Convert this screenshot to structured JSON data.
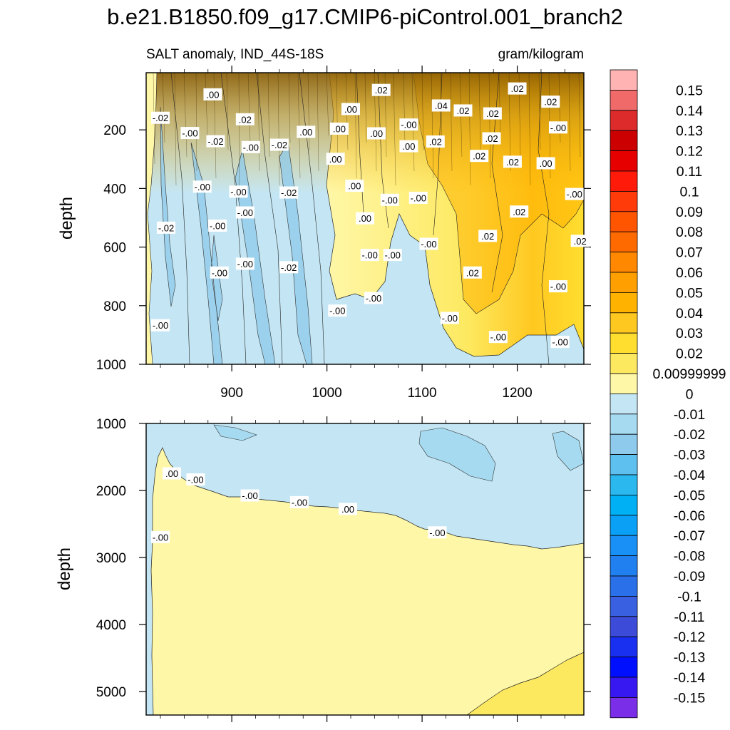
{
  "title": "b.e21.B1850.f09_g17.CMIP6-piControl.001_branch2",
  "chart_data": [
    {
      "type": "contour",
      "panel": "upper",
      "left_string": "SALT anomaly, IND_44S-18S",
      "right_string": "gram/kilogram",
      "xlabel": "",
      "ylabel": "depth",
      "xlim": [
        810,
        1270
      ],
      "ylim": [
        1000,
        5
      ],
      "y_reversed": true,
      "x_ticks": [
        900,
        1000,
        1100,
        1200
      ],
      "x_tick_labels": [
        "900",
        "1000",
        "1100",
        "1200"
      ],
      "y_ticks": [
        200,
        400,
        600,
        800,
        1000
      ],
      "y_tick_labels": [
        "200",
        "400",
        "600",
        "800",
        "1000"
      ],
      "contour_labels": [
        {
          "text": ".00",
          "x": 880,
          "y": 80
        },
        {
          "text": "-.02",
          "x": 825,
          "y": 160
        },
        {
          "text": "-.00",
          "x": 856,
          "y": 212
        },
        {
          "text": "-.02",
          "x": 883,
          "y": 240
        },
        {
          "text": ".02",
          "x": 914,
          "y": 165
        },
        {
          "text": "-.00",
          "x": 920,
          "y": 260
        },
        {
          "text": "-.02",
          "x": 950,
          "y": 252
        },
        {
          "text": ".00",
          "x": 978,
          "y": 208
        },
        {
          "text": ".00",
          "x": 1025,
          "y": 130
        },
        {
          "text": ".00",
          "x": 1009,
          "y": 300
        },
        {
          "text": ".00",
          "x": 1013,
          "y": 197
        },
        {
          "text": ".00",
          "x": 1052,
          "y": 213
        },
        {
          "text": ".02",
          "x": 1057,
          "y": 65
        },
        {
          "text": "-.00",
          "x": 1086,
          "y": 183
        },
        {
          "text": ".00",
          "x": 1086,
          "y": 257
        },
        {
          "text": ".02",
          "x": 1114,
          "y": 241
        },
        {
          "text": ".04",
          "x": 1120,
          "y": 118
        },
        {
          "text": ".02",
          "x": 1143,
          "y": 135
        },
        {
          "text": ".02",
          "x": 1174,
          "y": 145
        },
        {
          "text": ".02",
          "x": 1173,
          "y": 230
        },
        {
          "text": ".02",
          "x": 1200,
          "y": 60
        },
        {
          "text": ".02",
          "x": 1160,
          "y": 290
        },
        {
          "text": ".02",
          "x": 1195,
          "y": 310
        },
        {
          "text": ".00",
          "x": 1230,
          "y": 315
        },
        {
          "text": "-.00",
          "x": 1243,
          "y": 193
        },
        {
          "text": ".02",
          "x": 1235,
          "y": 105
        },
        {
          "text": "-.00",
          "x": 1260,
          "y": 420
        },
        {
          "text": ".02",
          "x": 1202,
          "y": 480
        },
        {
          "text": ".02",
          "x": 1266,
          "y": 580
        },
        {
          "text": ".02",
          "x": 1169,
          "y": 563
        },
        {
          "text": ".02",
          "x": 1153,
          "y": 688
        },
        {
          "text": "-.00",
          "x": 1243,
          "y": 735
        },
        {
          "text": "-.00",
          "x": 1180,
          "y": 908
        },
        {
          "text": "-.00",
          "x": 1245,
          "y": 925
        },
        {
          "text": "-.00",
          "x": 1129,
          "y": 843
        },
        {
          "text": "-.00",
          "x": 1107,
          "y": 590
        },
        {
          "text": "-.00",
          "x": 1066,
          "y": 440
        },
        {
          "text": "-.00",
          "x": 1096,
          "y": 433
        },
        {
          "text": ".00",
          "x": 1029,
          "y": 392
        },
        {
          "text": ".00",
          "x": 1040,
          "y": 503
        },
        {
          "text": "-.00",
          "x": 1045,
          "y": 628
        },
        {
          "text": "-.00",
          "x": 1069,
          "y": 628
        },
        {
          "text": "-.00",
          "x": 1049,
          "y": 775
        },
        {
          "text": "-.00",
          "x": 1011,
          "y": 818
        },
        {
          "text": "-.00",
          "x": 869,
          "y": 395
        },
        {
          "text": "-.00",
          "x": 914,
          "y": 483
        },
        {
          "text": "-.00",
          "x": 885,
          "y": 528
        },
        {
          "text": "-.00",
          "x": 907,
          "y": 412
        },
        {
          "text": "-.00",
          "x": 914,
          "y": 658
        },
        {
          "text": "-.00",
          "x": 887,
          "y": 688
        },
        {
          "text": "-.02",
          "x": 960,
          "y": 415
        },
        {
          "text": "-.02",
          "x": 960,
          "y": 670
        },
        {
          "text": "-.02",
          "x": 831,
          "y": 535
        },
        {
          "text": "-.00",
          "x": 825,
          "y": 868
        }
      ]
    },
    {
      "type": "contour",
      "panel": "lower",
      "xlabel": "",
      "ylabel": "depth",
      "xlim": [
        810,
        1270
      ],
      "ylim": [
        5350,
        1000
      ],
      "y_reversed": true,
      "x_ticks": [
        900,
        1000,
        1100,
        1200
      ],
      "y_ticks": [
        1000,
        2000,
        3000,
        4000,
        5000
      ],
      "y_tick_labels": [
        "1000",
        "2000",
        "3000",
        "4000",
        "5000"
      ],
      "contour_labels": [
        {
          "text": ".00",
          "x": 837,
          "y": 1750
        },
        {
          "text": "-.00",
          "x": 862,
          "y": 1840
        },
        {
          "text": "-.00",
          "x": 919,
          "y": 2080
        },
        {
          "text": "-.00",
          "x": 971,
          "y": 2180
        },
        {
          "text": ".00",
          "x": 1022,
          "y": 2280
        },
        {
          "text": "-.00",
          "x": 1116,
          "y": 2630
        },
        {
          "text": "-.00",
          "x": 825,
          "y": 2700
        }
      ]
    }
  ],
  "colorbar": {
    "levels": [
      "0.15",
      "0.14",
      "0.13",
      "0.12",
      "0.11",
      "0.1",
      "0.09",
      "0.08",
      "0.07",
      "0.06",
      "0.05",
      "0.04",
      "0.03",
      "0.02",
      "0.00999999",
      "0",
      "-0.01",
      "-0.02",
      "-0.03",
      "-0.04",
      "-0.05",
      "-0.06",
      "-0.07",
      "-0.08",
      "-0.09",
      "-0.1",
      "-0.11",
      "-0.12",
      "-0.13",
      "-0.14",
      "-0.15"
    ],
    "colors": [
      "#ffb3b3",
      "#f06a6a",
      "#dd2a2a",
      "#cc0000",
      "#e60000",
      "#ff1a0a",
      "#ff3b0a",
      "#ff5500",
      "#ff6a00",
      "#ff8800",
      "#ffa000",
      "#ffb300",
      "#ffc820",
      "#ffde30",
      "#fde960",
      "#fff7a8",
      "#c4e6f4",
      "#a6daf0",
      "#8ecaeb",
      "#5ec0ef",
      "#2ab8ef",
      "#00b0f5",
      "#0aa0f5",
      "#1890f5",
      "#2080f0",
      "#2a70e8",
      "#3860e0",
      "#3c4cd8",
      "#1a30f0",
      "#0010ff",
      "#3818f0",
      "#7a2ee8"
    ]
  }
}
